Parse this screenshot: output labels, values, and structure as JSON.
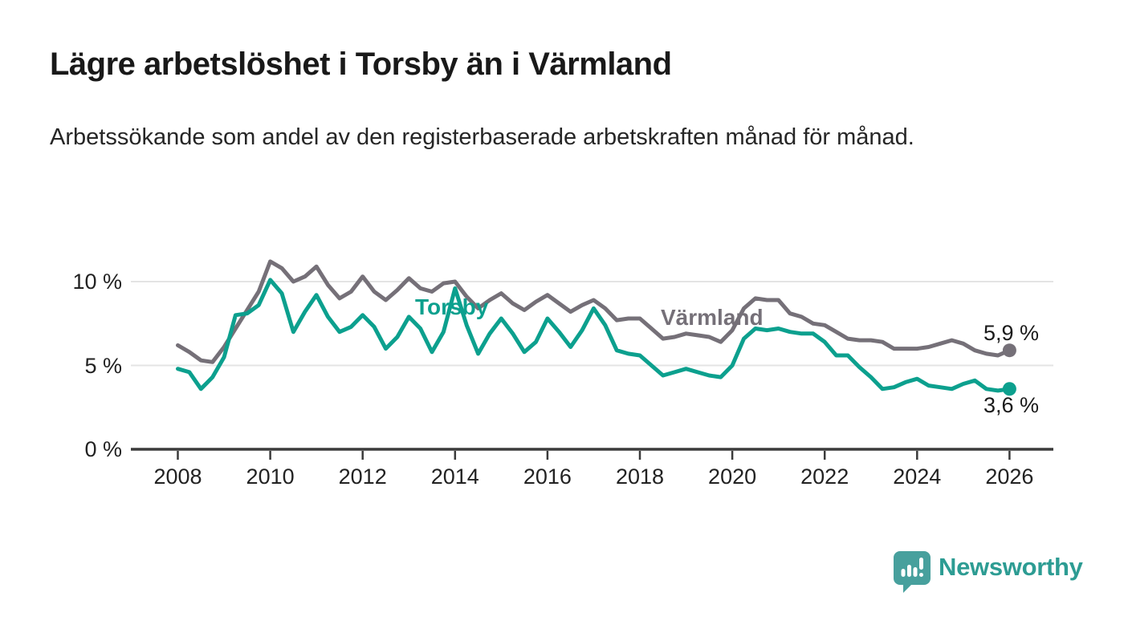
{
  "header": {
    "title": "Lägre arbetslöshet i Torsby än i Värmland",
    "subtitle": "Arbetssökande som andel av den registerbaserade arbetskraften månad för månad."
  },
  "chart_data": {
    "type": "line",
    "title": "Lägre arbetslöshet i Torsby än i Värmland",
    "subtitle": "Arbetssökande som andel av den registerbaserade arbetskraften månad för månad.",
    "unit": "%",
    "grid": "horizontal",
    "legend_position": "inline-labels",
    "x_start_year": 2008,
    "x_end_year": 2026,
    "points_per_year": 4,
    "ylim": [
      0,
      11.8
    ],
    "y_ticks": [
      {
        "value": 0,
        "label": "0 %"
      },
      {
        "value": 5,
        "label": "5 %"
      },
      {
        "value": 10,
        "label": "10 %"
      }
    ],
    "x_tick_labels": [
      "2008",
      "2010",
      "2012",
      "2014",
      "2016",
      "2018",
      "2020",
      "2022",
      "2024",
      "2026"
    ],
    "series": [
      {
        "name": "Värmland",
        "color": "#757078",
        "end_label": "5,9 %",
        "end_value": 5.9,
        "values": [
          6.2,
          5.8,
          5.3,
          5.2,
          6.1,
          7.2,
          8.3,
          9.4,
          11.2,
          10.8,
          10.0,
          10.3,
          10.9,
          9.8,
          9.0,
          9.4,
          10.3,
          9.4,
          8.9,
          9.5,
          10.2,
          9.6,
          9.4,
          9.9,
          10.0,
          9.1,
          8.4,
          8.9,
          9.3,
          8.7,
          8.3,
          8.8,
          9.2,
          8.7,
          8.2,
          8.6,
          8.9,
          8.4,
          7.7,
          7.8,
          7.8,
          7.2,
          6.6,
          6.7,
          6.9,
          6.8,
          6.7,
          6.4,
          7.1,
          8.4,
          9.0,
          8.9,
          8.9,
          8.1,
          7.9,
          7.5,
          7.4,
          7.0,
          6.6,
          6.5,
          6.5,
          6.4,
          6.0,
          6.0,
          6.0,
          6.1,
          6.3,
          6.5,
          6.3,
          5.9,
          5.7,
          5.6,
          5.9
        ]
      },
      {
        "name": "Torsby",
        "color": "#0CA08E",
        "end_label": "3,6 %",
        "end_value": 3.6,
        "values": [
          4.8,
          4.6,
          3.6,
          4.3,
          5.5,
          8.0,
          8.1,
          8.6,
          10.1,
          9.3,
          7.0,
          8.2,
          9.2,
          7.9,
          7.0,
          7.3,
          8.0,
          7.3,
          6.0,
          6.7,
          7.9,
          7.2,
          5.8,
          7.0,
          9.6,
          7.4,
          5.7,
          6.9,
          7.8,
          6.9,
          5.8,
          6.4,
          7.8,
          7.0,
          6.1,
          7.1,
          8.4,
          7.4,
          5.9,
          5.7,
          5.6,
          5.0,
          4.4,
          4.6,
          4.8,
          4.6,
          4.4,
          4.3,
          5.0,
          6.6,
          7.2,
          7.1,
          7.2,
          7.0,
          6.9,
          6.9,
          6.4,
          5.6,
          5.6,
          4.9,
          4.3,
          3.6,
          3.7,
          4.0,
          4.2,
          3.8,
          3.7,
          3.6,
          3.9,
          4.1,
          3.6,
          3.5,
          3.6
        ]
      }
    ]
  },
  "branding": {
    "logo_text": "Newsworthy",
    "logo_text_color": "#2D9C93",
    "logo_icon_color": "#47A09D"
  }
}
